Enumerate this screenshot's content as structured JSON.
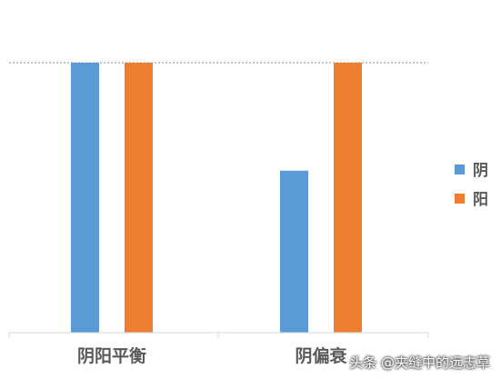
{
  "chart_data": {
    "type": "bar",
    "categories": [
      "阴阳平衡",
      "阴偏衰"
    ],
    "series": [
      {
        "name": "阴",
        "values": [
          100,
          60
        ],
        "color": "#5b9bd5"
      },
      {
        "name": "阳",
        "values": [
          100,
          100
        ],
        "color": "#ed7d31"
      }
    ],
    "ylim": [
      0,
      100
    ],
    "reference_line": 100,
    "grid": false,
    "legend_position": "right"
  },
  "watermark": "头条 @夹缝中的远志草"
}
